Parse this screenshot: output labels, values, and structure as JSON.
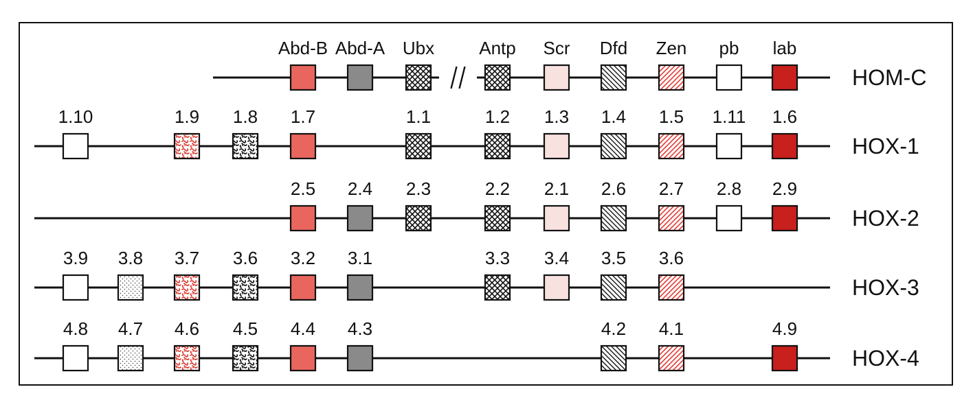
{
  "colors": {
    "line": "#111111",
    "orange": "#e8665e",
    "gray": "#8a8a8a",
    "pink": "#f8e2e0",
    "red": "#c8201c",
    "hatch_red": "#e23c34",
    "white": "#ffffff",
    "squiggle_red": "#d83a30"
  },
  "rows": [
    {
      "name": "HOM-C",
      "genes": [
        {
          "label": "Abd-B",
          "col": 4,
          "pattern": "orange"
        },
        {
          "label": "Abd-A",
          "col": 5,
          "pattern": "gray"
        },
        {
          "label": "Ubx",
          "col": 6,
          "pattern": "crosshatch"
        },
        {
          "label": "Antp",
          "col": 7,
          "pattern": "crosshatch"
        },
        {
          "label": "Scr",
          "col": 8,
          "pattern": "pink"
        },
        {
          "label": "Dfd",
          "col": 9,
          "pattern": "diag-black"
        },
        {
          "label": "Zen",
          "col": 10,
          "pattern": "diag-red"
        },
        {
          "label": "pb",
          "col": 11,
          "pattern": "white"
        },
        {
          "label": "lab",
          "col": 12,
          "pattern": "red"
        }
      ],
      "break_after_col": 6
    },
    {
      "name": "HOX-1",
      "genes": [
        {
          "label": "1.10",
          "col": 0,
          "pattern": "white"
        },
        {
          "label": "1.9",
          "col": 2,
          "pattern": "squiggle-red"
        },
        {
          "label": "1.8",
          "col": 3,
          "pattern": "squiggle-black"
        },
        {
          "label": "1.7",
          "col": 4,
          "pattern": "orange"
        },
        {
          "label": "1.1",
          "col": 6,
          "pattern": "crosshatch"
        },
        {
          "label": "1.2",
          "col": 7,
          "pattern": "crosshatch"
        },
        {
          "label": "1.3",
          "col": 8,
          "pattern": "pink"
        },
        {
          "label": "1.4",
          "col": 9,
          "pattern": "diag-black"
        },
        {
          "label": "1.5",
          "col": 10,
          "pattern": "diag-red"
        },
        {
          "label": "1.11",
          "col": 11,
          "pattern": "white"
        },
        {
          "label": "1.6",
          "col": 12,
          "pattern": "red"
        }
      ]
    },
    {
      "name": "HOX-2",
      "genes": [
        {
          "label": "2.5",
          "col": 4,
          "pattern": "orange"
        },
        {
          "label": "2.4",
          "col": 5,
          "pattern": "gray"
        },
        {
          "label": "2.3",
          "col": 6,
          "pattern": "crosshatch"
        },
        {
          "label": "2.2",
          "col": 7,
          "pattern": "crosshatch"
        },
        {
          "label": "2.1",
          "col": 8,
          "pattern": "pink"
        },
        {
          "label": "2.6",
          "col": 9,
          "pattern": "diag-black"
        },
        {
          "label": "2.7",
          "col": 10,
          "pattern": "diag-red"
        },
        {
          "label": "2.8",
          "col": 11,
          "pattern": "white"
        },
        {
          "label": "2.9",
          "col": 12,
          "pattern": "red"
        }
      ]
    },
    {
      "name": "HOX-3",
      "genes": [
        {
          "label": "3.9",
          "col": 0,
          "pattern": "white"
        },
        {
          "label": "3.8",
          "col": 1,
          "pattern": "dots"
        },
        {
          "label": "3.7",
          "col": 2,
          "pattern": "squiggle-red"
        },
        {
          "label": "3.6",
          "col": 3,
          "pattern": "squiggle-black"
        },
        {
          "label": "3.2",
          "col": 4,
          "pattern": "orange"
        },
        {
          "label": "3.1",
          "col": 5,
          "pattern": "gray"
        },
        {
          "label": "3.3",
          "col": 7,
          "pattern": "crosshatch"
        },
        {
          "label": "3.4",
          "col": 8,
          "pattern": "pink"
        },
        {
          "label": "3.5",
          "col": 9,
          "pattern": "diag-black"
        },
        {
          "label": "3.6",
          "col": 10,
          "pattern": "diag-red"
        }
      ]
    },
    {
      "name": "HOX-4",
      "genes": [
        {
          "label": "4.8",
          "col": 0,
          "pattern": "white"
        },
        {
          "label": "4.7",
          "col": 1,
          "pattern": "dots"
        },
        {
          "label": "4.6",
          "col": 2,
          "pattern": "squiggle-red"
        },
        {
          "label": "4.5",
          "col": 3,
          "pattern": "squiggle-black"
        },
        {
          "label": "4.4",
          "col": 4,
          "pattern": "orange"
        },
        {
          "label": "4.3",
          "col": 5,
          "pattern": "gray"
        },
        {
          "label": "4.2",
          "col": 9,
          "pattern": "diag-black"
        },
        {
          "label": "4.1",
          "col": 10,
          "pattern": "diag-red"
        },
        {
          "label": "4.9",
          "col": 12,
          "pattern": "red"
        }
      ]
    }
  ]
}
